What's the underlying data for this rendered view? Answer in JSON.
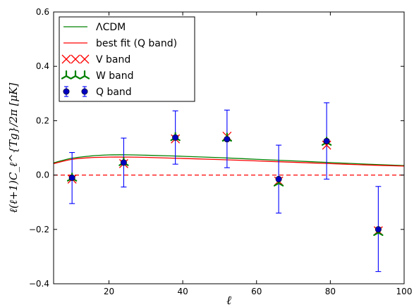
{
  "chart_data": {
    "type": "scatter",
    "title": "",
    "xlabel": "ℓ",
    "ylabel": "ℓ(ℓ+1)C_ℓ^{Tg}/2π   [μK]",
    "xlim": [
      5,
      100
    ],
    "ylim": [
      -0.4,
      0.6
    ],
    "xticks": [
      20,
      40,
      60,
      80,
      100
    ],
    "yticks": [
      -0.4,
      -0.2,
      0.0,
      0.2,
      0.4,
      0.6
    ],
    "grid": false,
    "legend_position": "top-left",
    "colors": {
      "lcdm": "#008000",
      "bestfit": "#ff0000",
      "zero_line": "#ff0000",
      "v_band": "#ff0000",
      "w_band": "#008000",
      "q_band_marker": "#0000bf",
      "q_band_errorbar": "#0000ff"
    },
    "series": [
      {
        "name": "ΛCDM",
        "style": "line",
        "x": [
          5,
          10,
          15,
          20,
          25,
          30,
          40,
          50,
          60,
          70,
          80,
          90,
          100
        ],
        "y": [
          0.045,
          0.062,
          0.07,
          0.074,
          0.0745,
          0.073,
          0.069,
          0.064,
          0.058,
          0.052,
          0.046,
          0.04,
          0.035
        ]
      },
      {
        "name": "best fit (Q band)",
        "style": "line",
        "x": [
          5,
          10,
          15,
          20,
          25,
          30,
          40,
          50,
          60,
          70,
          80,
          90,
          100
        ],
        "y": [
          0.042,
          0.058,
          0.064,
          0.066,
          0.066,
          0.065,
          0.061,
          0.057,
          0.052,
          0.047,
          0.042,
          0.037,
          0.033
        ]
      },
      {
        "name": "V band",
        "style": "marker-x",
        "x": [
          10,
          24,
          38,
          52,
          66,
          79,
          93
        ],
        "y": [
          -0.015,
          0.042,
          0.133,
          0.143,
          -0.022,
          0.11,
          -0.205
        ]
      },
      {
        "name": "W band",
        "style": "marker-star",
        "x": [
          10,
          24,
          38,
          52,
          66,
          79,
          93
        ],
        "y": [
          -0.012,
          0.045,
          0.137,
          0.135,
          -0.03,
          0.12,
          -0.212
        ]
      },
      {
        "name": "Q band",
        "style": "marker-circle-errorbar",
        "x": [
          10,
          24,
          38,
          52,
          66,
          79,
          93
        ],
        "y": [
          -0.01,
          0.046,
          0.138,
          0.132,
          -0.015,
          0.125,
          -0.2
        ],
        "yerr_low": [
          0.095,
          0.09,
          0.098,
          0.105,
          0.125,
          0.14,
          0.155
        ],
        "yerr_high": [
          0.093,
          0.09,
          0.098,
          0.107,
          0.125,
          0.141,
          0.158
        ]
      }
    ],
    "reference_line": {
      "y": 0.0,
      "style": "dashed"
    }
  }
}
